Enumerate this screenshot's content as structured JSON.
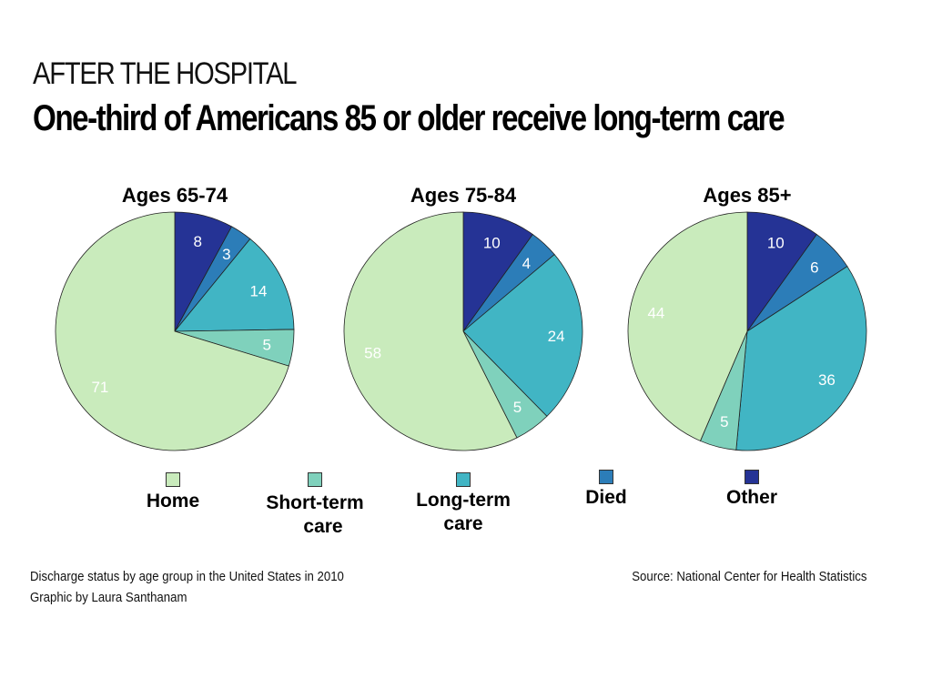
{
  "header": {
    "kicker": "AFTER THE HOSPITAL",
    "title": "One-third of Americans 85 or older receive long-term care"
  },
  "colors": {
    "home": "#c9ebbc",
    "short_term_care": "#7fd1bc",
    "long_term_care": "#41b5c4",
    "died": "#2c7db8",
    "other": "#253395",
    "outline": "#222222",
    "label": "#ffffff"
  },
  "legend": [
    {
      "key": "home",
      "label": "Home"
    },
    {
      "key": "short_term_care",
      "label": "Short-term care"
    },
    {
      "key": "long_term_care",
      "label": "Long-term care"
    },
    {
      "key": "died",
      "label": "Died"
    },
    {
      "key": "other",
      "label": "Other"
    }
  ],
  "chart_data": [
    {
      "type": "pie",
      "title": "Ages 65-74",
      "categories": [
        "Other",
        "Died",
        "Long-term care",
        "Short-term care",
        "Home"
      ],
      "values": [
        8,
        3,
        14,
        5,
        71
      ]
    },
    {
      "type": "pie",
      "title": "Ages 75-84",
      "categories": [
        "Other",
        "Died",
        "Long-term care",
        "Short-term care",
        "Home"
      ],
      "values": [
        10,
        4,
        24,
        5,
        58
      ]
    },
    {
      "type": "pie",
      "title": "Ages 85+",
      "categories": [
        "Other",
        "Died",
        "Long-term care",
        "Short-term care",
        "Home"
      ],
      "values": [
        10,
        6,
        36,
        5,
        44
      ]
    }
  ],
  "footer": {
    "description": "Discharge status by age group in the United States in 2010",
    "credit": "Graphic by Laura Santhanam",
    "source": "Source: National Center for Health Statistics"
  }
}
